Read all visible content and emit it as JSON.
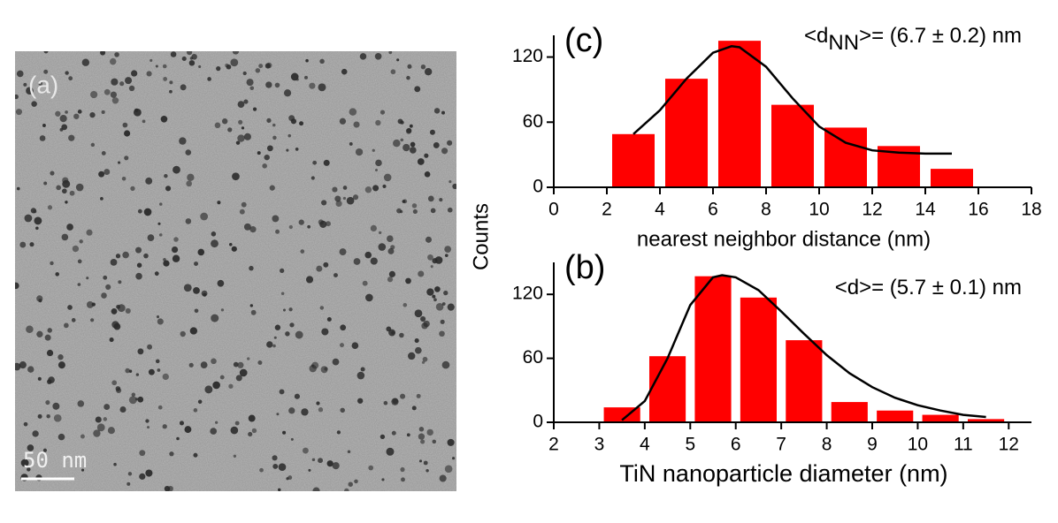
{
  "image": {
    "label": "(a)",
    "scale_bar": "50 nm"
  },
  "chart_data": [
    {
      "type": "bar",
      "panel": "(c)",
      "annotation": [
        "<d",
        "NN",
        ">= (6.7 ± 0.2) nm"
      ],
      "xlabel": "nearest neighbor distance (nm)",
      "x": [
        3,
        5,
        7,
        9,
        11,
        13,
        15
      ],
      "values": [
        49,
        100,
        135,
        76,
        55,
        38,
        17
      ],
      "bar_width": 1.6,
      "color": "#ff0000",
      "fit": {
        "x": [
          3,
          4,
          5,
          6,
          6.7,
          7,
          8,
          9,
          10,
          11,
          12,
          13,
          14,
          15
        ],
        "values": [
          49,
          71,
          100,
          124,
          130,
          129,
          111,
          82,
          56,
          41,
          34,
          32,
          31,
          31
        ],
        "color": "#000000"
      },
      "xlim": [
        0,
        18
      ],
      "xticks": [
        0,
        2,
        4,
        6,
        8,
        10,
        12,
        14,
        16,
        18
      ],
      "ylim": [
        0,
        140
      ],
      "yticks": [
        0,
        60,
        120
      ]
    },
    {
      "type": "bar",
      "panel": "(b)",
      "annotation": [
        "<d>= (5.7 ± 0.1) nm"
      ],
      "xlabel": "TiN nanoparticle diameter (nm)",
      "ylabel": "Counts",
      "x": [
        3.5,
        4.5,
        5.5,
        6.5,
        7.5,
        8.5,
        9.5,
        10.5,
        11.5
      ],
      "values": [
        14,
        62,
        137,
        117,
        77,
        19,
        11,
        7,
        3
      ],
      "bar_width": 0.8,
      "color": "#ff0000",
      "fit": {
        "x": [
          3.5,
          4,
          4.5,
          5,
          5.5,
          5.7,
          6,
          6.5,
          7,
          7.5,
          8,
          8.5,
          9,
          9.5,
          10,
          10.5,
          11,
          11.5
        ],
        "values": [
          2,
          20,
          60,
          110,
          136,
          138,
          136,
          124,
          104,
          83,
          63,
          46,
          33,
          23,
          16,
          11,
          7,
          5
        ],
        "color": "#000000"
      },
      "xlim": [
        2,
        12.5
      ],
      "xticks": [
        2,
        3,
        4,
        5,
        6,
        7,
        8,
        9,
        10,
        11,
        12
      ],
      "ylim": [
        0,
        150
      ],
      "yticks": [
        0,
        60,
        120
      ]
    }
  ]
}
